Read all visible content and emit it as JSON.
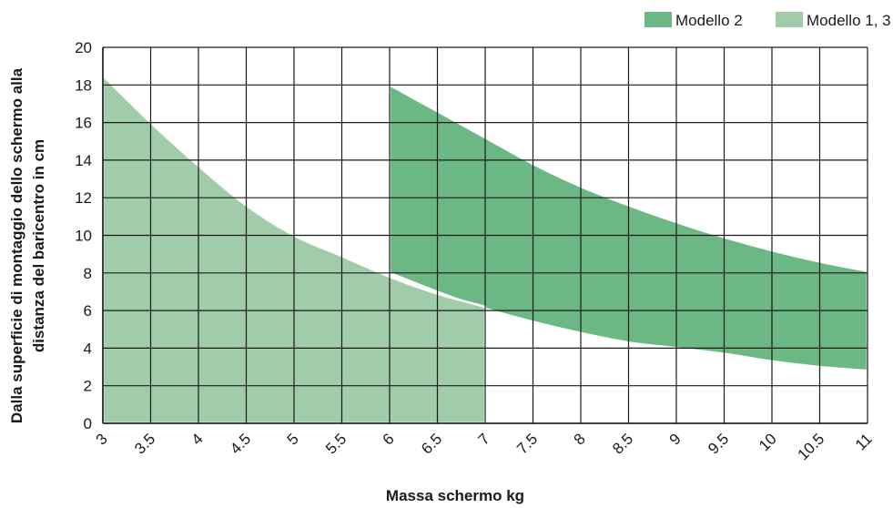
{
  "chart_data": {
    "type": "area",
    "title": "",
    "xlabel": "Massa schermo kg",
    "ylabel_lines": [
      "Dalla superficie di montaggio dello schermo alla",
      "distanza del baricentro in cm"
    ],
    "xlim": [
      3,
      11
    ],
    "ylim": [
      0,
      20
    ],
    "x_ticks": [
      "3",
      "3.5",
      "4",
      "4.5",
      "5",
      "5.5",
      "6",
      "6.5",
      "7",
      "7.5",
      "8",
      "8.5",
      "9",
      "9.5",
      "10",
      "10.5",
      "11"
    ],
    "y_ticks": [
      "0",
      "2",
      "4",
      "6",
      "8",
      "10",
      "12",
      "14",
      "16",
      "18",
      "20"
    ],
    "grid": true,
    "legend_position": "top-right",
    "series": [
      {
        "name": "Modello 2",
        "color": "#6bb884",
        "upper": [
          [
            6,
            18
          ],
          [
            6.5,
            16.6
          ],
          [
            7,
            15.2
          ],
          [
            7.5,
            13.8
          ],
          [
            8,
            12.6
          ],
          [
            8.5,
            11.6
          ],
          [
            9,
            10.7
          ],
          [
            9.5,
            9.9
          ],
          [
            10,
            9.2
          ],
          [
            10.5,
            8.6
          ],
          [
            11,
            8.1
          ]
        ],
        "lower": [
          [
            6,
            8.0
          ],
          [
            6.5,
            7.0
          ],
          [
            7,
            6.1
          ],
          [
            7.5,
            5.4
          ],
          [
            8,
            4.8
          ],
          [
            8.5,
            4.3
          ],
          [
            9,
            4.0
          ],
          [
            9.5,
            3.7
          ],
          [
            10,
            3.3
          ],
          [
            10.5,
            3.0
          ],
          [
            11,
            2.8
          ]
        ]
      },
      {
        "name": "Modello 1, 3",
        "color": "#a0ccaa",
        "upper": [
          [
            3,
            18.5
          ],
          [
            3.5,
            16.0
          ],
          [
            4,
            13.7
          ],
          [
            4.5,
            11.6
          ],
          [
            5,
            10.0
          ],
          [
            5.5,
            8.9
          ],
          [
            6,
            7.8
          ],
          [
            6.5,
            6.9
          ],
          [
            7,
            6.2
          ]
        ],
        "lower": [
          [
            3,
            0
          ],
          [
            7,
            0
          ]
        ]
      }
    ]
  }
}
